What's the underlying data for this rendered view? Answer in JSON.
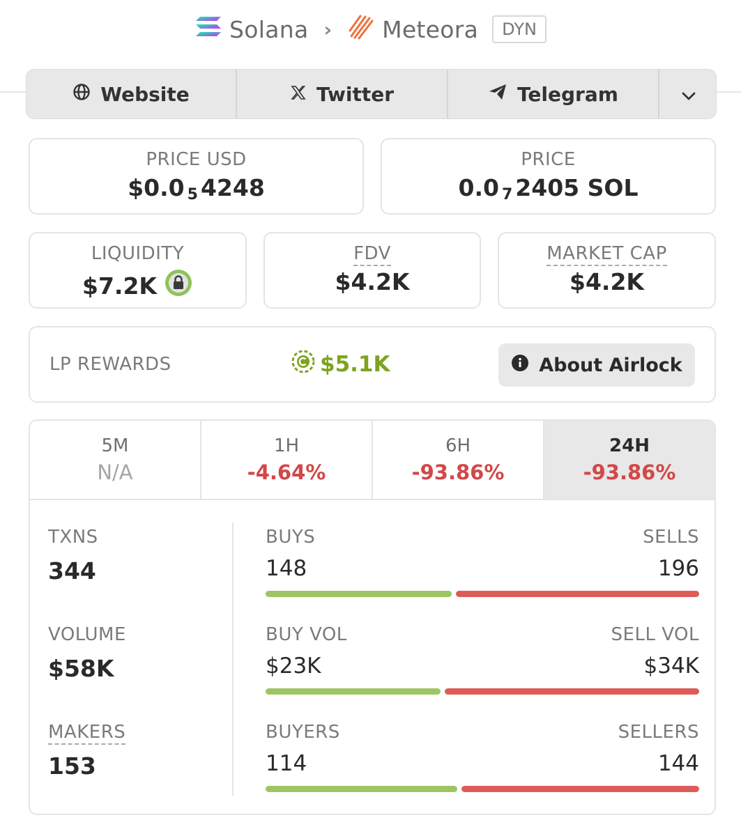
{
  "breadcrumb": {
    "chain": "Solana",
    "dex": "Meteora",
    "pool_type": "DYN"
  },
  "links": {
    "website": "Website",
    "twitter": "Twitter",
    "telegram": "Telegram"
  },
  "price_usd": {
    "label": "PRICE USD",
    "prefix": "$0.0",
    "zeros": "5",
    "digits": "4248"
  },
  "price_native": {
    "label": "PRICE",
    "prefix": "0.0",
    "zeros": "7",
    "digits": "2405 SOL"
  },
  "liquidity": {
    "label": "LIQUIDITY",
    "value": "$7.2K"
  },
  "fdv": {
    "label": "FDV",
    "value": "$4.2K"
  },
  "market_cap": {
    "label": "MARKET CAP",
    "value": "$4.2K"
  },
  "lp_rewards": {
    "label": "LP REWARDS",
    "value": "$5.1K",
    "button": "About Airlock"
  },
  "tabs": [
    {
      "label": "5M",
      "value": "N/A"
    },
    {
      "label": "1H",
      "value": "-4.64%"
    },
    {
      "label": "6H",
      "value": "-93.86%"
    },
    {
      "label": "24H",
      "value": "-93.86%"
    }
  ],
  "active_tab": "24H",
  "stats": {
    "txns": {
      "label": "TXNS",
      "value": "344"
    },
    "volume": {
      "label": "VOLUME",
      "value": "$58K"
    },
    "makers": {
      "label": "MAKERS",
      "value": "153"
    }
  },
  "splits": {
    "txns": {
      "left_label": "BUYS",
      "right_label": "SELLS",
      "left_value": "148",
      "right_value": "196",
      "buy_fraction": 0.43
    },
    "volume": {
      "left_label": "BUY VOL",
      "right_label": "SELL VOL",
      "left_value": "$23K",
      "right_value": "$34K",
      "buy_fraction": 0.404
    },
    "makers": {
      "left_label": "BUYERS",
      "right_label": "SELLERS",
      "left_value": "114",
      "right_value": "144",
      "buy_fraction": 0.442
    }
  },
  "colors": {
    "negative": "#d24848",
    "positive_bar": "#9dc564",
    "negative_bar": "#dd5c58",
    "reward": "#7ea31f",
    "liquidity_lock": "#8fc25a"
  }
}
